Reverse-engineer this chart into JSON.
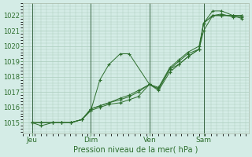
{
  "background_color": "#d4ece6",
  "grid_color": "#aaccbb",
  "line_color": "#2d6e2d",
  "marker_color": "#2d6e2d",
  "xlabel": "Pression niveau de la mer( hPa )",
  "ylabel_ticks": [
    1015,
    1016,
    1017,
    1018,
    1019,
    1020,
    1021,
    1022
  ],
  "ylim": [
    1014.3,
    1022.8
  ],
  "xlim": [
    0,
    1.0
  ],
  "day_labels": [
    "Jeu",
    "Dim",
    "Ven",
    "Sam"
  ],
  "day_positions": [
    0.04,
    0.3,
    0.56,
    0.8
  ],
  "series": [
    {
      "x": [
        0.04,
        0.08,
        0.13,
        0.17,
        0.21,
        0.26,
        0.3,
        0.34,
        0.38,
        0.43,
        0.47,
        0.56,
        0.6,
        0.65,
        0.69,
        0.73,
        0.78,
        0.8,
        0.84,
        0.88,
        0.93,
        0.97
      ],
      "y": [
        1015.0,
        1014.8,
        1015.0,
        1015.0,
        1015.0,
        1015.2,
        1015.8,
        1017.8,
        1018.8,
        1019.5,
        1019.5,
        1017.5,
        1017.1,
        1018.3,
        1018.8,
        1019.3,
        1019.8,
        1021.5,
        1022.3,
        1022.3,
        1022.0,
        1022.0
      ]
    },
    {
      "x": [
        0.04,
        0.08,
        0.13,
        0.17,
        0.21,
        0.26,
        0.3,
        0.34,
        0.38,
        0.43,
        0.47,
        0.51,
        0.56,
        0.6,
        0.65,
        0.69,
        0.73,
        0.78,
        0.8,
        0.84,
        0.88,
        0.93,
        0.97
      ],
      "y": [
        1015.0,
        1015.0,
        1015.0,
        1015.0,
        1015.0,
        1015.2,
        1015.8,
        1016.0,
        1016.2,
        1016.3,
        1016.5,
        1016.7,
        1017.5,
        1017.2,
        1018.5,
        1018.8,
        1019.3,
        1019.8,
        1021.0,
        1022.0,
        1022.0,
        1022.0,
        1022.0
      ]
    },
    {
      "x": [
        0.04,
        0.08,
        0.13,
        0.17,
        0.21,
        0.26,
        0.3,
        0.34,
        0.38,
        0.43,
        0.47,
        0.51,
        0.56,
        0.6,
        0.65,
        0.69,
        0.73,
        0.78,
        0.8,
        0.84,
        0.88,
        0.93,
        0.97
      ],
      "y": [
        1015.0,
        1015.0,
        1015.0,
        1015.0,
        1015.0,
        1015.2,
        1015.9,
        1016.1,
        1016.3,
        1016.5,
        1016.7,
        1017.0,
        1017.5,
        1017.2,
        1018.5,
        1019.0,
        1019.5,
        1019.8,
        1021.5,
        1022.0,
        1022.0,
        1022.0,
        1021.8
      ]
    },
    {
      "x": [
        0.04,
        0.08,
        0.13,
        0.17,
        0.21,
        0.26,
        0.3,
        0.34,
        0.38,
        0.43,
        0.47,
        0.51,
        0.56,
        0.6,
        0.65,
        0.69,
        0.73,
        0.78,
        0.8,
        0.84,
        0.88,
        0.93,
        0.97
      ],
      "y": [
        1015.0,
        1015.0,
        1015.0,
        1015.0,
        1015.0,
        1015.2,
        1015.9,
        1016.1,
        1016.3,
        1016.6,
        1016.8,
        1017.1,
        1017.5,
        1017.3,
        1018.6,
        1019.1,
        1019.6,
        1020.0,
        1021.5,
        1022.0,
        1022.1,
        1021.9,
        1021.9
      ]
    }
  ]
}
